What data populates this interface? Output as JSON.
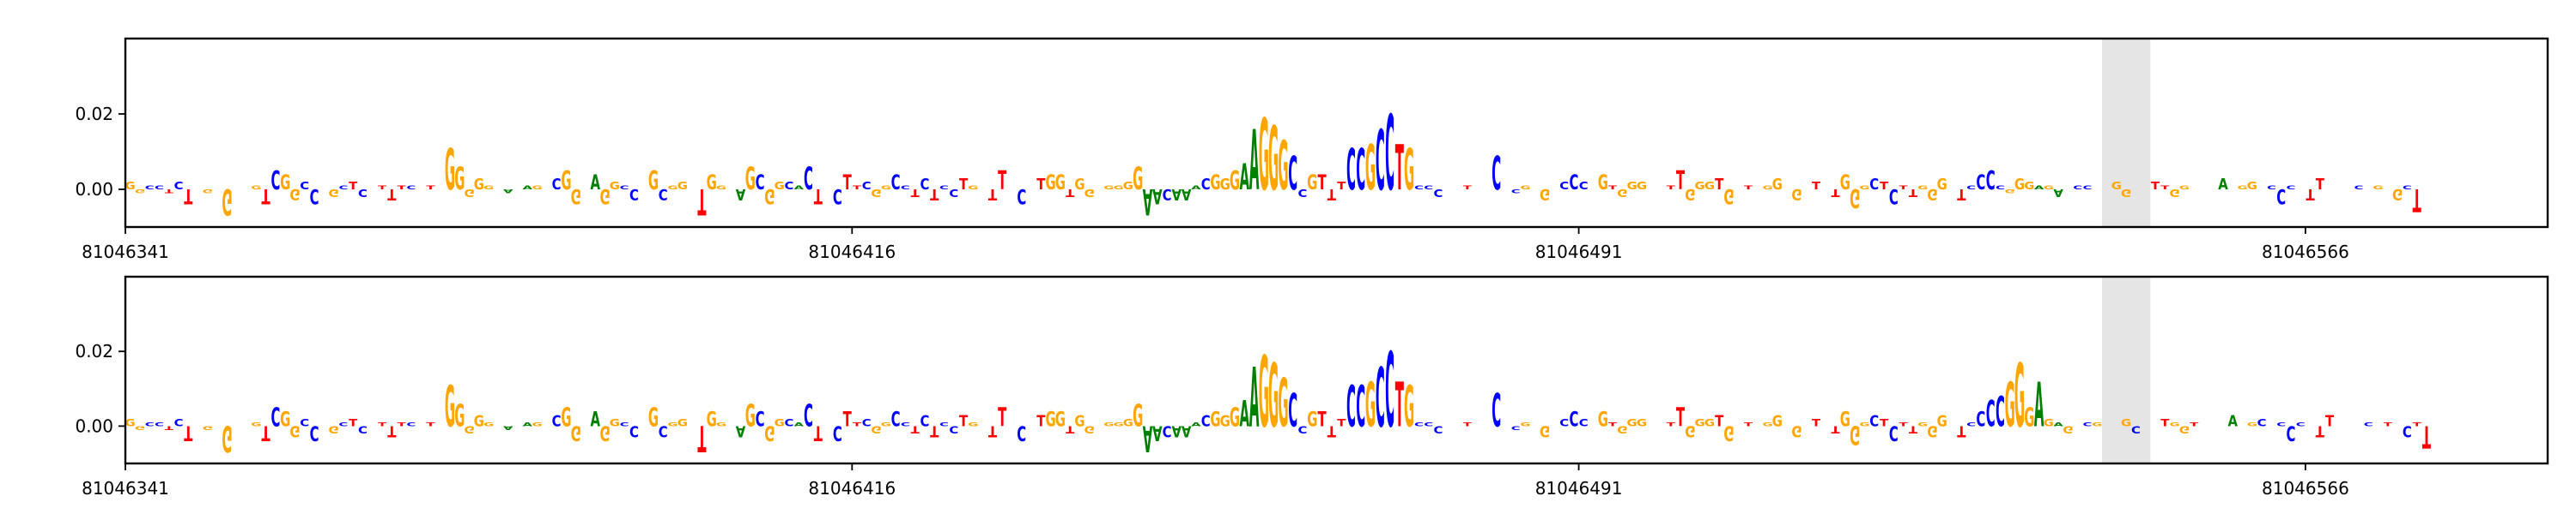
{
  "chart_data": [
    {
      "type": "sequence-logo",
      "panel": "reference",
      "x_ticks": [
        "81046341",
        "81046416",
        "81046491",
        "81046566"
      ],
      "y_ticks": [
        "0.00",
        "0.02"
      ],
      "ylim": [
        -0.01,
        0.04
      ],
      "xlim": [
        81046341,
        81046591
      ],
      "highlight": [
        81046545,
        81046549
      ],
      "colors": {
        "A": "#008000",
        "C": "#0000ff",
        "G": "#ffa500",
        "T": "#ff0000",
        "highlight": "#e5e5e5"
      },
      "sequence": "GGCCTCTGGCGTTGTCGGCCTGCTCTTTTCTTGGGGGGGAAAGCCGGGAGGCCGGCGGTTGGGAGCGGCACTGCTTCGGCCTCTCCTGTTTGCCTGGTGGGGGGGAACAAACGGGAAGGGCCGTTTCCGCCTGCCCGGTTCCCCGGGTCCCGGTGGGGGTTGGGTGTTTGGCGTTTTGGGCTCTTGGGCTCCCCGGGAGAGCCGGGGCCTTGGTCGAAGGCCCCCTTTGGCCGTGCTTCCTTCCTTCCCCCTTCCCTGGTGGG",
      "heights": [
        0.002,
        -0.001,
        0.001,
        0.001,
        -0.001,
        0.002,
        -0.004,
        0.0,
        -0.001,
        0.0,
        -0.007,
        0.0,
        0.0,
        0.001,
        -0.004,
        0.005,
        0.004,
        -0.003,
        0.002,
        -0.004,
        0.0,
        -0.002,
        0.001,
        0.002,
        -0.002,
        0.0,
        0.001,
        -0.003,
        0.001,
        0.001,
        0.0,
        0.001,
        0.0,
        0.011,
        0.006,
        -0.002,
        0.003,
        0.001,
        0.0,
        -0.001,
        0.0,
        0.001,
        0.001,
        0.0,
        0.003,
        0.005,
        -0.004,
        0.0,
        0.004,
        -0.004,
        0.002,
        0.001,
        -0.003,
        0.0,
        0.005,
        -0.003,
        0.001,
        0.002,
        0.0,
        -0.007,
        0.004,
        0.001,
        0.0,
        -0.003,
        0.006,
        0.004,
        -0.004,
        0.002,
        0.002,
        0.001,
        0.006,
        -0.004,
        0.0,
        -0.004,
        0.004,
        0.001,
        0.002,
        -0.002,
        0.001,
        0.004,
        0.001,
        -0.002,
        0.003,
        -0.003,
        0.001,
        -0.002,
        0.003,
        0.001,
        0.0,
        -0.003,
        0.005,
        0.0,
        -0.004,
        0.0,
        0.003,
        0.004,
        0.004,
        -0.002,
        0.003,
        -0.002,
        0.0,
        0.001,
        0.001,
        0.002,
        0.006,
        -0.007,
        -0.004,
        -0.003,
        -0.003,
        -0.003,
        0.001,
        0.003,
        0.004,
        0.003,
        0.005,
        0.007,
        0.016,
        0.019,
        0.017,
        0.013,
        0.009,
        -0.002,
        0.004,
        0.004,
        -0.003,
        0.002,
        0.011,
        0.011,
        0.012,
        0.016,
        0.02,
        0.012,
        0.011,
        0.001,
        0.001,
        -0.002,
        0.0,
        0.0,
        0.001,
        0.0,
        0.0,
        0.009,
        0.0,
        -0.001,
        0.001,
        0.0,
        -0.003,
        0.0,
        0.002,
        0.004,
        0.002,
        0.0,
        0.004,
        0.001,
        -0.002,
        0.002,
        0.002,
        0.0,
        0.0,
        0.001,
        0.005,
        -0.003,
        0.002,
        0.002,
        0.003,
        -0.004,
        0.0,
        0.001,
        0.0,
        0.001,
        0.003,
        0.0,
        -0.003,
        0.0,
        0.002,
        0.0,
        -0.002,
        0.004,
        -0.005,
        0.001,
        0.003,
        0.002,
        -0.004,
        0.001,
        -0.002,
        0.001,
        -0.003,
        0.003,
        0.0,
        -0.003,
        0.001,
        0.004,
        0.005,
        0.001,
        -0.001,
        0.003,
        0.002,
        0.001,
        0.001,
        -0.002,
        0.0,
        0.001,
        0.001,
        0.0,
        0.0,
        0.002,
        -0.002,
        0.0,
        0.0,
        0.002,
        0.001,
        -0.002,
        0.001,
        0.0,
        0.0,
        0.0,
        0.003,
        0.0,
        0.001,
        0.002,
        0.0,
        0.001,
        -0.004,
        0.001,
        0.0,
        -0.003,
        0.003,
        0.0,
        0.0,
        0.0,
        0.001,
        0.0,
        0.001,
        0.0,
        -0.003,
        0.001,
        -0.006
      ]
    },
    {
      "type": "sequence-logo",
      "panel": "alternate",
      "x_ticks": [
        "81046341",
        "81046416",
        "81046491",
        "81046566"
      ],
      "y_ticks": [
        "0.00",
        "0.02"
      ],
      "ylim": [
        -0.01,
        0.04
      ],
      "xlim": [
        81046341,
        81046591
      ],
      "highlight": [
        81046545,
        81046549
      ],
      "colors": {
        "A": "#008000",
        "C": "#0000ff",
        "G": "#ffa500",
        "T": "#ff0000",
        "highlight": "#e5e5e5"
      },
      "sequence": "GGCCTCTGGCGTTGTCGGCCTGCTCTTTTCTTGGGGGGGAAAGCCGGGAGGCCGGCGGTTGGGAGCGGCACTGCTTCGGCCTCTCCTGTTTGCCTGGTGGGGGGGAACAAACGGGAAGGGCCGTTTCCGCCTGCCCGGTTCCCCGGGTCCCGGTGGGGGTTGGGTGTTTGGCGTTTTGGGCTCTTGGGCTCCCCGGGAGAGCCGGGGCCTTGGTCGAAGGCCCCCTTTGGCCGTGCTTCCTTCCTTCCCCCTTCCCTGGTGGG",
      "heights": [
        0.002,
        -0.001,
        0.001,
        0.001,
        -0.001,
        0.002,
        -0.004,
        0.0,
        -0.001,
        0.0,
        -0.007,
        0.0,
        0.0,
        0.001,
        -0.004,
        0.005,
        0.004,
        -0.003,
        0.002,
        -0.004,
        0.0,
        -0.002,
        0.001,
        0.002,
        -0.002,
        0.0,
        0.001,
        -0.003,
        0.001,
        0.001,
        0.0,
        0.001,
        0.0,
        0.011,
        0.006,
        -0.002,
        0.003,
        0.001,
        0.0,
        -0.001,
        0.0,
        0.001,
        0.001,
        0.0,
        0.003,
        0.005,
        -0.004,
        0.0,
        0.004,
        -0.004,
        0.002,
        0.001,
        -0.003,
        0.0,
        0.005,
        -0.003,
        0.001,
        0.002,
        0.0,
        -0.007,
        0.004,
        0.001,
        0.0,
        -0.003,
        0.006,
        0.004,
        -0.004,
        0.002,
        0.002,
        0.001,
        0.006,
        -0.004,
        0.0,
        -0.004,
        0.004,
        0.001,
        0.002,
        -0.002,
        0.001,
        0.004,
        0.001,
        -0.002,
        0.003,
        -0.003,
        0.001,
        -0.002,
        0.003,
        0.001,
        0.0,
        -0.003,
        0.005,
        0.0,
        -0.004,
        0.0,
        0.003,
        0.004,
        0.004,
        -0.002,
        0.003,
        -0.002,
        0.0,
        0.001,
        0.001,
        0.002,
        0.006,
        -0.007,
        -0.004,
        -0.003,
        -0.003,
        -0.003,
        0.001,
        0.003,
        0.004,
        0.003,
        0.005,
        0.007,
        0.016,
        0.019,
        0.017,
        0.013,
        0.009,
        -0.002,
        0.004,
        0.004,
        -0.003,
        0.002,
        0.011,
        0.011,
        0.012,
        0.016,
        0.02,
        0.012,
        0.011,
        0.001,
        0.001,
        -0.002,
        0.0,
        0.0,
        0.001,
        0.0,
        0.0,
        0.009,
        0.0,
        -0.001,
        0.001,
        0.0,
        -0.003,
        0.0,
        0.002,
        0.004,
        0.002,
        0.0,
        0.004,
        0.001,
        -0.002,
        0.002,
        0.002,
        0.0,
        0.0,
        0.001,
        0.005,
        -0.003,
        0.002,
        0.002,
        0.003,
        -0.004,
        0.0,
        0.001,
        0.0,
        0.001,
        0.003,
        0.0,
        -0.003,
        0.0,
        0.002,
        0.0,
        -0.002,
        0.004,
        -0.005,
        0.001,
        0.003,
        0.002,
        -0.004,
        0.001,
        -0.002,
        0.001,
        -0.003,
        0.003,
        0.0,
        -0.003,
        0.001,
        0.004,
        0.007,
        0.008,
        0.012,
        0.017,
        0.005,
        0.012,
        0.002,
        0.001,
        -0.002,
        0.0,
        0.001,
        0.001,
        0.0,
        0.0,
        0.002,
        -0.002,
        0.0,
        0.0,
        0.002,
        0.001,
        -0.002,
        0.001,
        0.0,
        0.0,
        0.0,
        0.003,
        0.0,
        0.001,
        0.002,
        0.0,
        0.001,
        -0.004,
        0.001,
        0.0,
        -0.003,
        0.003,
        0.0,
        0.0,
        0.0,
        0.001,
        0.0,
        0.001,
        0.0,
        -0.003,
        0.001,
        -0.006
      ]
    }
  ]
}
